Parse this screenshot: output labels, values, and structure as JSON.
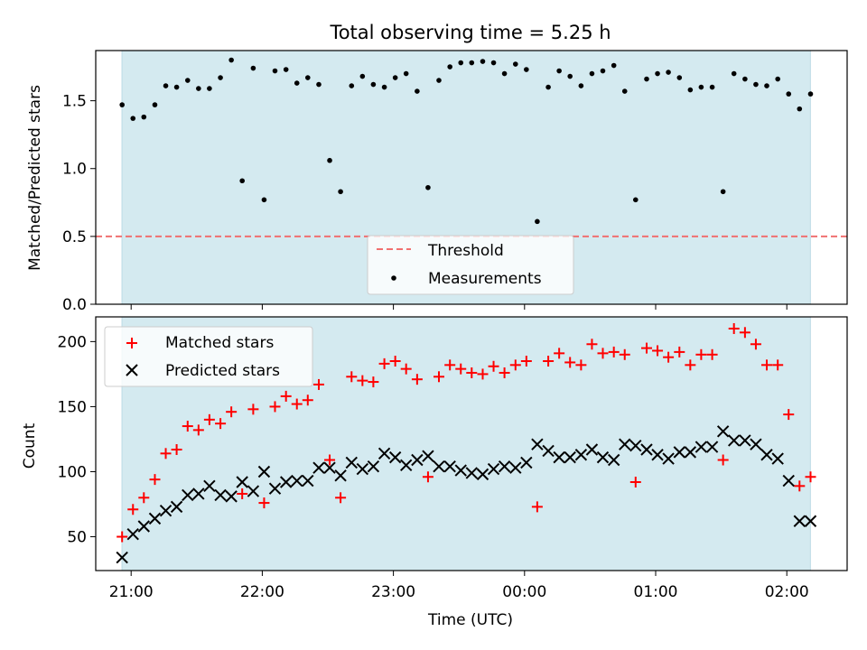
{
  "chart_data": {
    "title": "Total observing time = 5.25 h",
    "xlabel": "Time (UTC)",
    "x_tick_labels": [
      "21:00",
      "22:00",
      "23:00",
      "00:00",
      "01:00",
      "02:00"
    ],
    "x_tick_hours": [
      0,
      1,
      2,
      3,
      4,
      5
    ],
    "x_origin": "21:00 UTC",
    "x_range_hours": [
      -0.27,
      5.46
    ],
    "observing_span_hours": [
      -0.07,
      5.18
    ],
    "shaded_color": "#d4eaf0",
    "panels": [
      {
        "type": "scatter",
        "ylabel": "Matched/Predicted stars",
        "ylim": [
          0,
          1.87
        ],
        "yticks": [
          0.0,
          0.5,
          1.0,
          1.5
        ],
        "ytick_labels": [
          "0.0",
          "0.5",
          "1.0",
          "1.5"
        ],
        "threshold": {
          "name": "Threshold",
          "value": 0.5,
          "color": "#f07070"
        },
        "legend": {
          "placement": "bottom-center",
          "entries": [
            "Threshold",
            "Measurements"
          ]
        },
        "series": [
          {
            "name": "Measurements",
            "color": "#000000",
            "marker": "dot",
            "x": [
              -0.069,
              0.014,
              0.097,
              0.181,
              0.264,
              0.347,
              0.431,
              0.514,
              0.597,
              0.681,
              0.764,
              0.847,
              0.931,
              1.014,
              1.097,
              1.181,
              1.264,
              1.347,
              1.431,
              1.514,
              1.597,
              1.681,
              1.764,
              1.847,
              1.931,
              2.014,
              2.097,
              2.181,
              2.264,
              2.347,
              2.431,
              2.514,
              2.597,
              2.681,
              2.764,
              2.847,
              2.931,
              3.014,
              3.097,
              3.181,
              3.264,
              3.347,
              3.431,
              3.514,
              3.597,
              3.681,
              3.764,
              3.847,
              3.931,
              4.014,
              4.097,
              4.181,
              4.264,
              4.347,
              4.431,
              4.514,
              4.597,
              4.681,
              4.764,
              4.847,
              4.931,
              5.014,
              5.097,
              5.181
            ],
            "y": [
              1.47,
              1.37,
              1.38,
              1.47,
              1.61,
              1.6,
              1.65,
              1.59,
              1.59,
              1.67,
              1.8,
              0.91,
              1.74,
              0.77,
              1.72,
              1.73,
              1.63,
              1.67,
              1.62,
              1.06,
              0.83,
              1.61,
              1.68,
              1.62,
              1.6,
              1.67,
              1.7,
              1.57,
              0.86,
              1.65,
              1.75,
              1.78,
              1.78,
              1.79,
              1.78,
              1.7,
              1.77,
              1.73,
              0.61,
              1.6,
              1.72,
              1.68,
              1.61,
              1.7,
              1.72,
              1.76,
              1.57,
              0.77,
              1.66,
              1.7,
              1.71,
              1.67,
              1.58,
              1.6,
              1.6,
              0.83,
              1.7,
              1.66,
              1.62,
              1.61,
              1.66,
              1.55,
              1.44,
              1.55
            ]
          }
        ]
      },
      {
        "type": "scatter",
        "ylabel": "Count",
        "ylim": [
          24,
          219
        ],
        "yticks": [
          50,
          100,
          150,
          200
        ],
        "ytick_labels": [
          "50",
          "100",
          "150",
          "200"
        ],
        "legend": {
          "placement": "top-left",
          "entries": [
            "Matched stars",
            "Predicted stars"
          ]
        },
        "series": [
          {
            "name": "Matched stars",
            "color": "#ff0000",
            "marker": "plus",
            "x": [
              -0.069,
              0.014,
              0.097,
              0.181,
              0.264,
              0.347,
              0.431,
              0.514,
              0.597,
              0.681,
              0.764,
              0.847,
              0.931,
              1.014,
              1.097,
              1.181,
              1.264,
              1.347,
              1.431,
              1.514,
              1.597,
              1.681,
              1.764,
              1.847,
              1.931,
              2.014,
              2.097,
              2.181,
              2.264,
              2.347,
              2.431,
              2.514,
              2.597,
              2.681,
              2.764,
              2.847,
              2.931,
              3.014,
              3.097,
              3.181,
              3.264,
              3.347,
              3.431,
              3.514,
              3.597,
              3.681,
              3.764,
              3.847,
              3.931,
              4.014,
              4.097,
              4.181,
              4.264,
              4.347,
              4.431,
              4.514,
              4.597,
              4.681,
              4.764,
              4.847,
              4.931,
              5.014,
              5.097,
              5.181
            ],
            "y": [
              50,
              71,
              80,
              94,
              114,
              117,
              135,
              132,
              140,
              137,
              146,
              83,
              148,
              76,
              150,
              158,
              152,
              155,
              167,
              109,
              80,
              173,
              170,
              169,
              183,
              185,
              179,
              171,
              96,
              173,
              182,
              179,
              176,
              175,
              181,
              176,
              182,
              185,
              73,
              185,
              191,
              184,
              182,
              198,
              191,
              192,
              190,
              92,
              195,
              193,
              188,
              192,
              182,
              190,
              190,
              109,
              210,
              207,
              198,
              182,
              182,
              144,
              89,
              96
            ]
          },
          {
            "name": "Predicted stars",
            "color": "#000000",
            "marker": "x",
            "x": [
              -0.069,
              0.014,
              0.097,
              0.181,
              0.264,
              0.347,
              0.431,
              0.514,
              0.597,
              0.681,
              0.764,
              0.847,
              0.931,
              1.014,
              1.097,
              1.181,
              1.264,
              1.347,
              1.431,
              1.514,
              1.597,
              1.681,
              1.764,
              1.847,
              1.931,
              2.014,
              2.097,
              2.181,
              2.264,
              2.347,
              2.431,
              2.514,
              2.597,
              2.681,
              2.764,
              2.847,
              2.931,
              3.014,
              3.097,
              3.181,
              3.264,
              3.347,
              3.431,
              3.514,
              3.597,
              3.681,
              3.764,
              3.847,
              3.931,
              4.014,
              4.097,
              4.181,
              4.264,
              4.347,
              4.431,
              4.514,
              4.597,
              4.681,
              4.764,
              4.847,
              4.931,
              5.014,
              5.097,
              5.181
            ],
            "y": [
              34,
              52,
              58,
              64,
              70,
              73,
              82,
              83,
              89,
              82,
              81,
              92,
              85,
              100,
              87,
              92,
              93,
              93,
              103,
              103,
              97,
              107,
              102,
              104,
              114,
              111,
              105,
              109,
              112,
              104,
              104,
              101,
              99,
              98,
              102,
              104,
              103,
              107,
              121,
              116,
              111,
              111,
              113,
              117,
              111,
              109,
              121,
              120,
              117,
              113,
              110,
              115,
              115,
              119,
              119,
              131,
              124,
              124,
              121,
              113,
              110,
              93,
              62,
              62
            ]
          }
        ]
      }
    ]
  }
}
